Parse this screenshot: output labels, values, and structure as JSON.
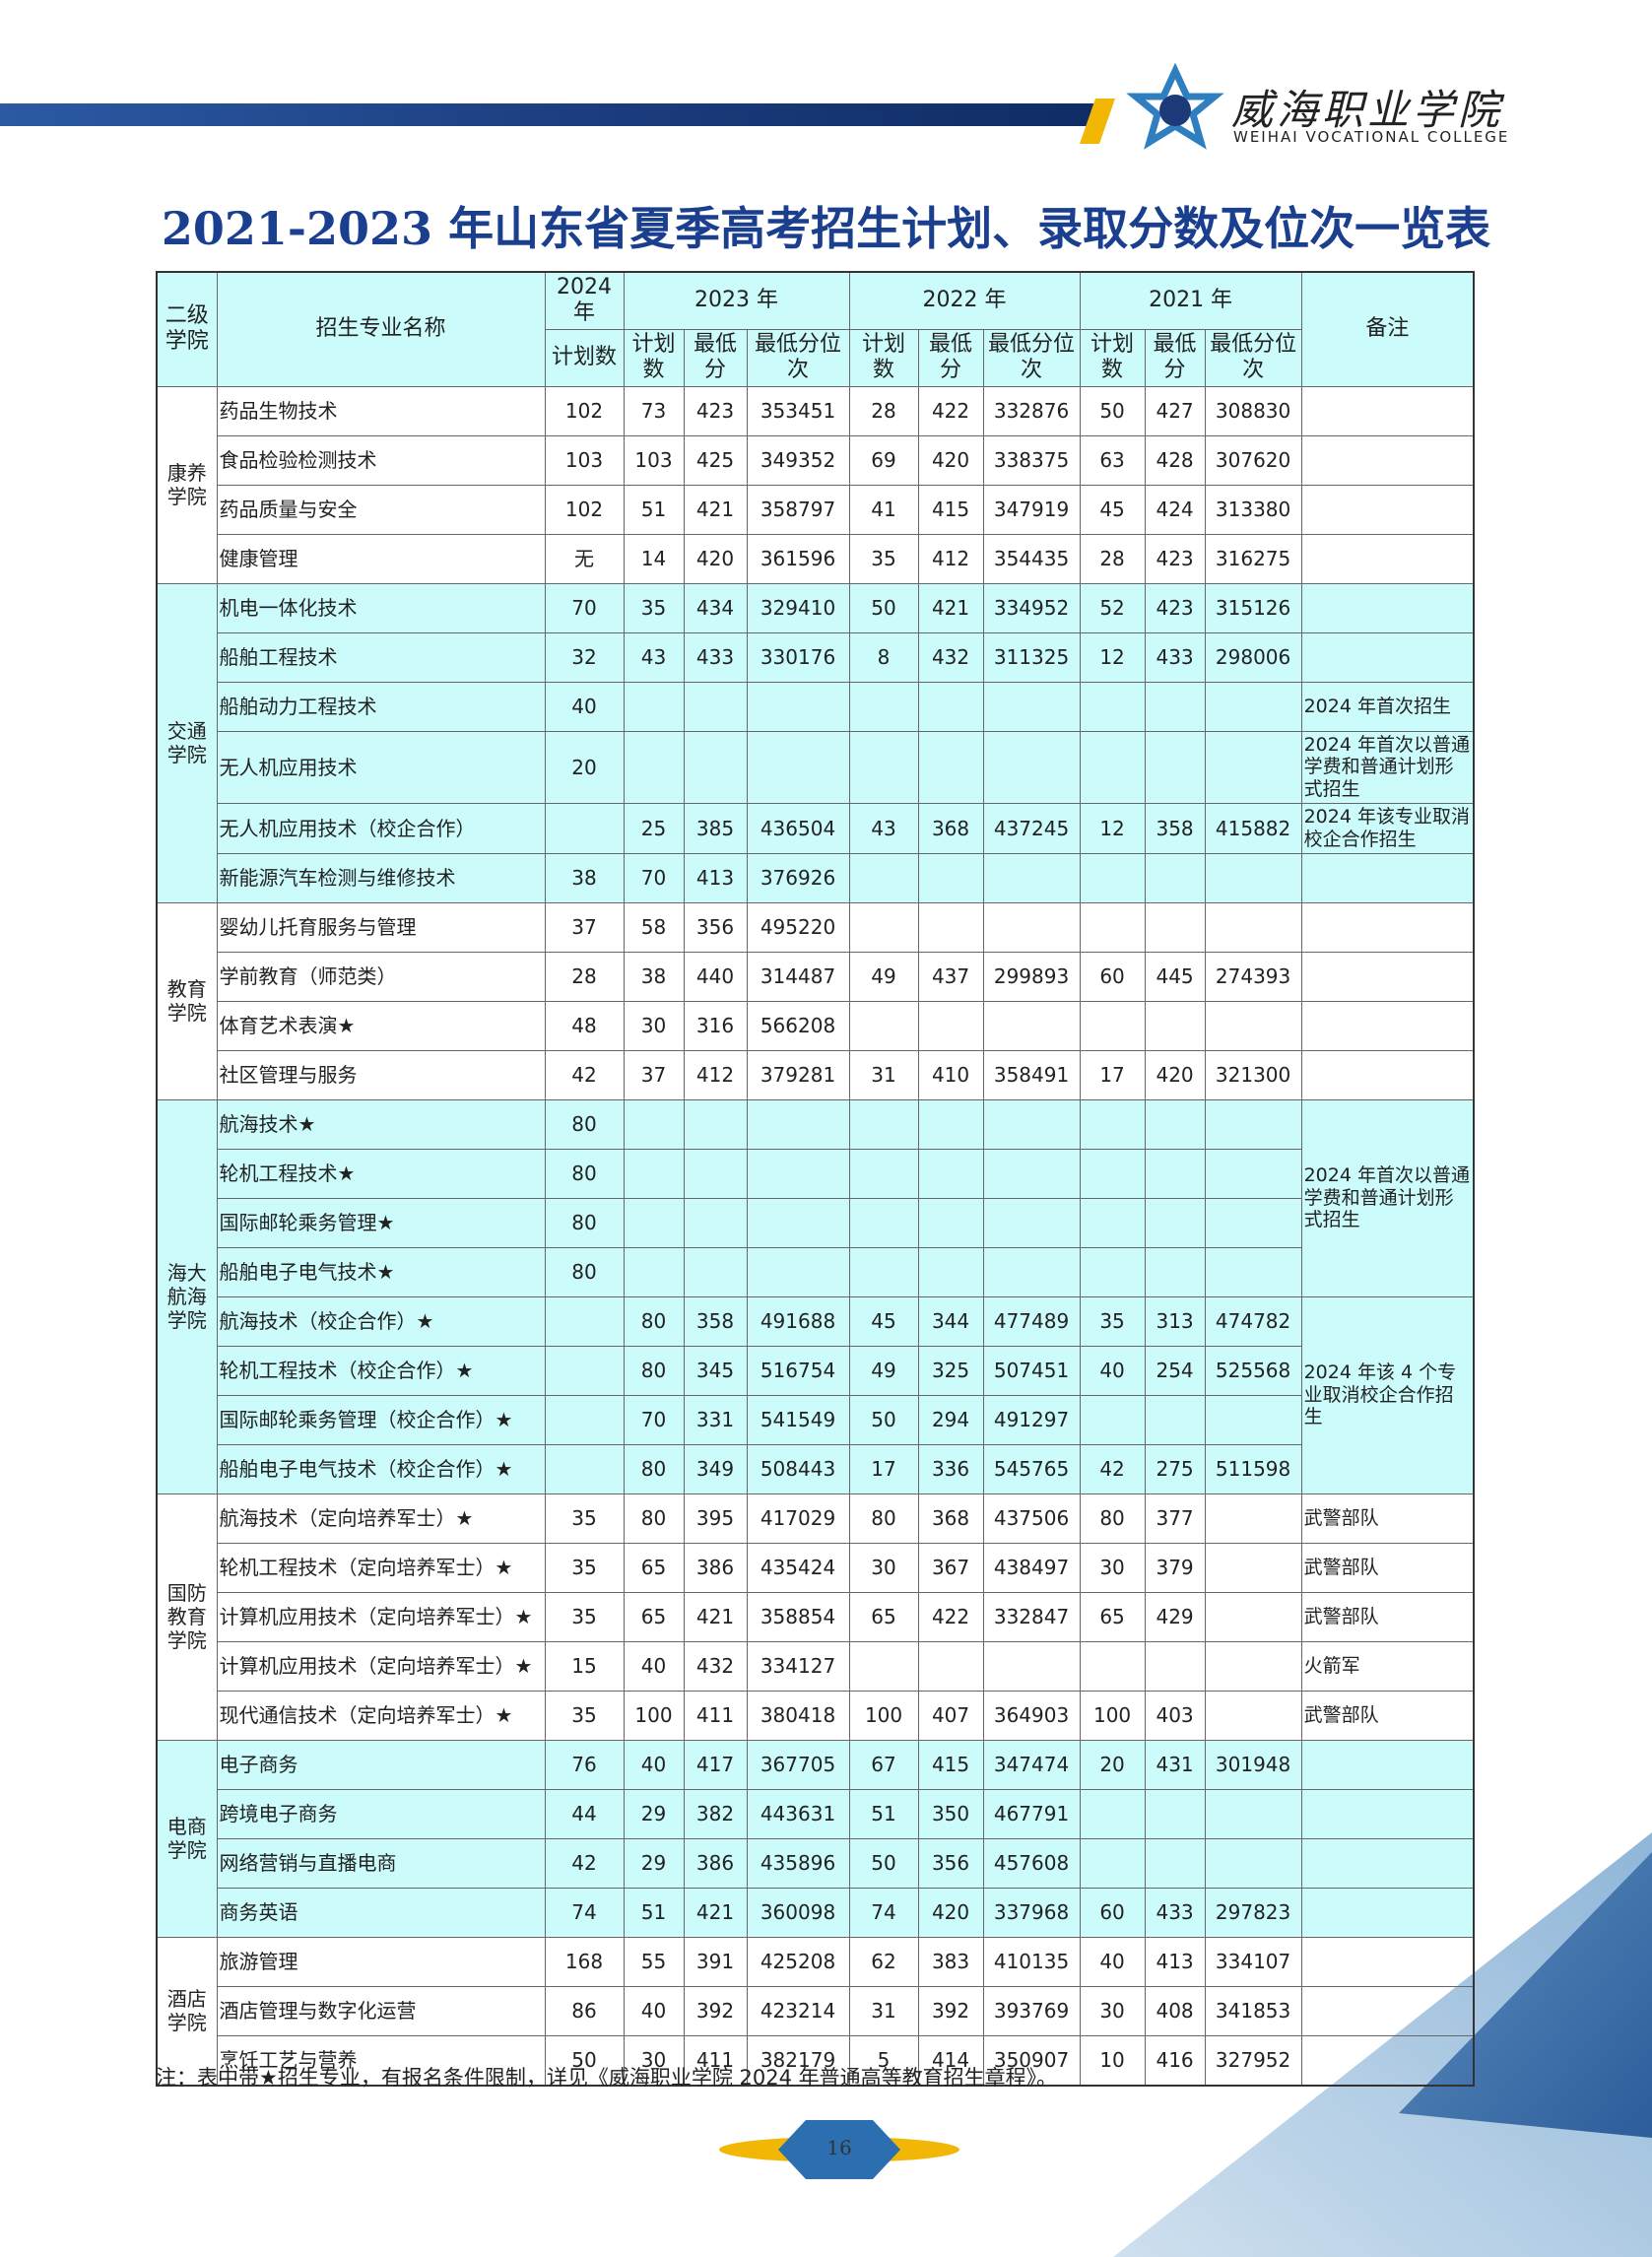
{
  "header": {
    "logo_cn": "威海职业学院",
    "logo_en": "WEIHAI VOCATIONAL COLLEGE"
  },
  "title": "2021-2023 年山东省夏季高考招生计划、录取分数及位次一览表",
  "table": {
    "head": {
      "college": "二级学院",
      "major": "招生专业名称",
      "years": [
        "2024 年",
        "2023 年",
        "2022 年",
        "2021 年"
      ],
      "remark": "备注",
      "sub": [
        "计划数",
        "计划数",
        "最低分",
        "最低分位次",
        "计划数",
        "最低分",
        "最低分位次",
        "计划数",
        "最低分",
        "最低分位次"
      ]
    },
    "groups": [
      {
        "name": "康养学院",
        "rows": [
          {
            "major": "药品生物技术",
            "cells": [
              102,
              73,
              423,
              353451,
              28,
              422,
              332876,
              50,
              427,
              308830
            ]
          },
          {
            "major": "食品检验检测技术",
            "cells": [
              103,
              103,
              425,
              349352,
              69,
              420,
              338375,
              63,
              428,
              307620
            ]
          },
          {
            "major": "药品质量与安全",
            "cells": [
              102,
              51,
              421,
              358797,
              41,
              415,
              347919,
              45,
              424,
              313380
            ]
          },
          {
            "major": "健康管理",
            "cells": [
              "无",
              14,
              420,
              361596,
              35,
              412,
              354435,
              28,
              423,
              316275
            ]
          }
        ]
      },
      {
        "name": "交通学院",
        "rows": [
          {
            "major": "机电一体化技术",
            "cells": [
              70,
              35,
              434,
              329410,
              50,
              421,
              334952,
              52,
              423,
              315126
            ]
          },
          {
            "major": "船舶工程技术",
            "cells": [
              32,
              43,
              433,
              330176,
              8,
              432,
              311325,
              12,
              433,
              298006
            ]
          },
          {
            "major": "船舶动力工程技术",
            "cells": [
              40,
              null,
              null,
              null,
              null,
              null,
              null,
              null,
              null,
              null
            ],
            "remark": "2024 年首次招生"
          },
          {
            "major": "无人机应用技术",
            "cells": [
              20,
              null,
              null,
              null,
              null,
              null,
              null,
              null,
              null,
              null
            ],
            "remark": "2024 年首次以普通学费和普通计划形式招生"
          },
          {
            "major": "无人机应用技术（校企合作）",
            "cells": [
              null,
              25,
              385,
              436504,
              43,
              368,
              437245,
              12,
              358,
              415882
            ],
            "remark": "2024 年该专业取消校企合作招生"
          },
          {
            "major": "新能源汽车检测与维修技术",
            "cells": [
              38,
              70,
              413,
              376926,
              null,
              null,
              null,
              null,
              null,
              null
            ]
          }
        ]
      },
      {
        "name": "教育学院",
        "rows": [
          {
            "major": "婴幼儿托育服务与管理",
            "cells": [
              37,
              58,
              356,
              495220,
              null,
              null,
              null,
              null,
              null,
              null
            ]
          },
          {
            "major": "学前教育（师范类）",
            "cells": [
              28,
              38,
              440,
              314487,
              49,
              437,
              299893,
              60,
              445,
              274393
            ]
          },
          {
            "major": "体育艺术表演★",
            "cells": [
              48,
              30,
              316,
              566208,
              null,
              null,
              null,
              null,
              null,
              null
            ]
          },
          {
            "major": "社区管理与服务",
            "cells": [
              42,
              37,
              412,
              379281,
              31,
              410,
              358491,
              17,
              420,
              321300
            ]
          }
        ]
      },
      {
        "name": "海大航海学院",
        "rows": [
          {
            "remark": "2024 年首次以普通学费和普通计划形式招生",
            "rows": [
              {
                "major": "航海技术★",
                "cells": [
                  80,
                  null,
                  null,
                  null,
                  null,
                  null,
                  null,
                  null,
                  null,
                  null
                ]
              },
              {
                "major": "轮机工程技术★",
                "cells": [
                  80,
                  null,
                  null,
                  null,
                  null,
                  null,
                  null,
                  null,
                  null,
                  null
                ]
              },
              {
                "major": "国际邮轮乘务管理★",
                "cells": [
                  80,
                  null,
                  null,
                  null,
                  null,
                  null,
                  null,
                  null,
                  null,
                  null
                ]
              },
              {
                "major": "船舶电子电气技术★",
                "cells": [
                  80,
                  null,
                  null,
                  null,
                  null,
                  null,
                  null,
                  null,
                  null,
                  null
                ]
              }
            ]
          },
          {
            "remark": "2024 年该 4 个专业取消校企合作招生",
            "rows": [
              {
                "major": "航海技术（校企合作）★",
                "cells": [
                  null,
                  80,
                  358,
                  491688,
                  45,
                  344,
                  477489,
                  35,
                  313,
                  474782
                ]
              },
              {
                "major": "轮机工程技术（校企合作）★",
                "cells": [
                  null,
                  80,
                  345,
                  516754,
                  49,
                  325,
                  507451,
                  40,
                  254,
                  525568
                ]
              },
              {
                "major": "国际邮轮乘务管理（校企合作）★",
                "cells": [
                  null,
                  70,
                  331,
                  541549,
                  50,
                  294,
                  491297,
                  null,
                  null,
                  null
                ]
              },
              {
                "major": "船舶电子电气技术（校企合作）★",
                "cells": [
                  null,
                  80,
                  349,
                  508443,
                  17,
                  336,
                  545765,
                  42,
                  275,
                  511598
                ]
              }
            ]
          }
        ]
      },
      {
        "name": "国防教育学院",
        "rows": [
          {
            "major": "航海技术（定向培养军士）★",
            "cells": [
              35,
              80,
              395,
              417029,
              80,
              368,
              437506,
              80,
              377,
              null
            ],
            "remark": "武警部队"
          },
          {
            "major": "轮机工程技术（定向培养军士）★",
            "cells": [
              35,
              65,
              386,
              435424,
              30,
              367,
              438497,
              30,
              379,
              null
            ],
            "remark": "武警部队"
          },
          {
            "major": "计算机应用技术（定向培养军士）★",
            "cells": [
              35,
              65,
              421,
              358854,
              65,
              422,
              332847,
              65,
              429,
              null
            ],
            "remark": "武警部队"
          },
          {
            "major": "计算机应用技术（定向培养军士）★",
            "cells": [
              15,
              40,
              432,
              334127,
              null,
              null,
              null,
              null,
              null,
              null
            ],
            "remark": "火箭军"
          },
          {
            "major": "现代通信技术（定向培养军士）★",
            "cells": [
              35,
              100,
              411,
              380418,
              100,
              407,
              364903,
              100,
              403,
              null
            ],
            "remark": "武警部队"
          }
        ]
      },
      {
        "name": "电商学院",
        "rows": [
          {
            "major": "电子商务",
            "cells": [
              76,
              40,
              417,
              367705,
              67,
              415,
              347474,
              20,
              431,
              301948
            ]
          },
          {
            "major": "跨境电子商务",
            "cells": [
              44,
              29,
              382,
              443631,
              51,
              350,
              467791,
              null,
              null,
              null
            ]
          },
          {
            "major": "网络营销与直播电商",
            "cells": [
              42,
              29,
              386,
              435896,
              50,
              356,
              457608,
              null,
              null,
              null
            ]
          },
          {
            "major": "商务英语",
            "cells": [
              74,
              51,
              421,
              360098,
              74,
              420,
              337968,
              60,
              433,
              297823
            ]
          }
        ]
      },
      {
        "name": "酒店学院",
        "rows": [
          {
            "major": "旅游管理",
            "cells": [
              168,
              55,
              391,
              425208,
              62,
              383,
              410135,
              40,
              413,
              334107
            ]
          },
          {
            "major": "酒店管理与数字化运营",
            "cells": [
              86,
              40,
              392,
              423214,
              31,
              392,
              393769,
              30,
              408,
              341853
            ]
          },
          {
            "major": "烹饪工艺与营养",
            "cells": [
              50,
              30,
              411,
              382179,
              5,
              414,
              350907,
              10,
              416,
              327952
            ]
          }
        ]
      }
    ]
  },
  "note": "注：表中带★招生专业，有报名条件限制，详见《威海职业学院 2024 年普通高等教育招生章程》。",
  "page_number": "16"
}
